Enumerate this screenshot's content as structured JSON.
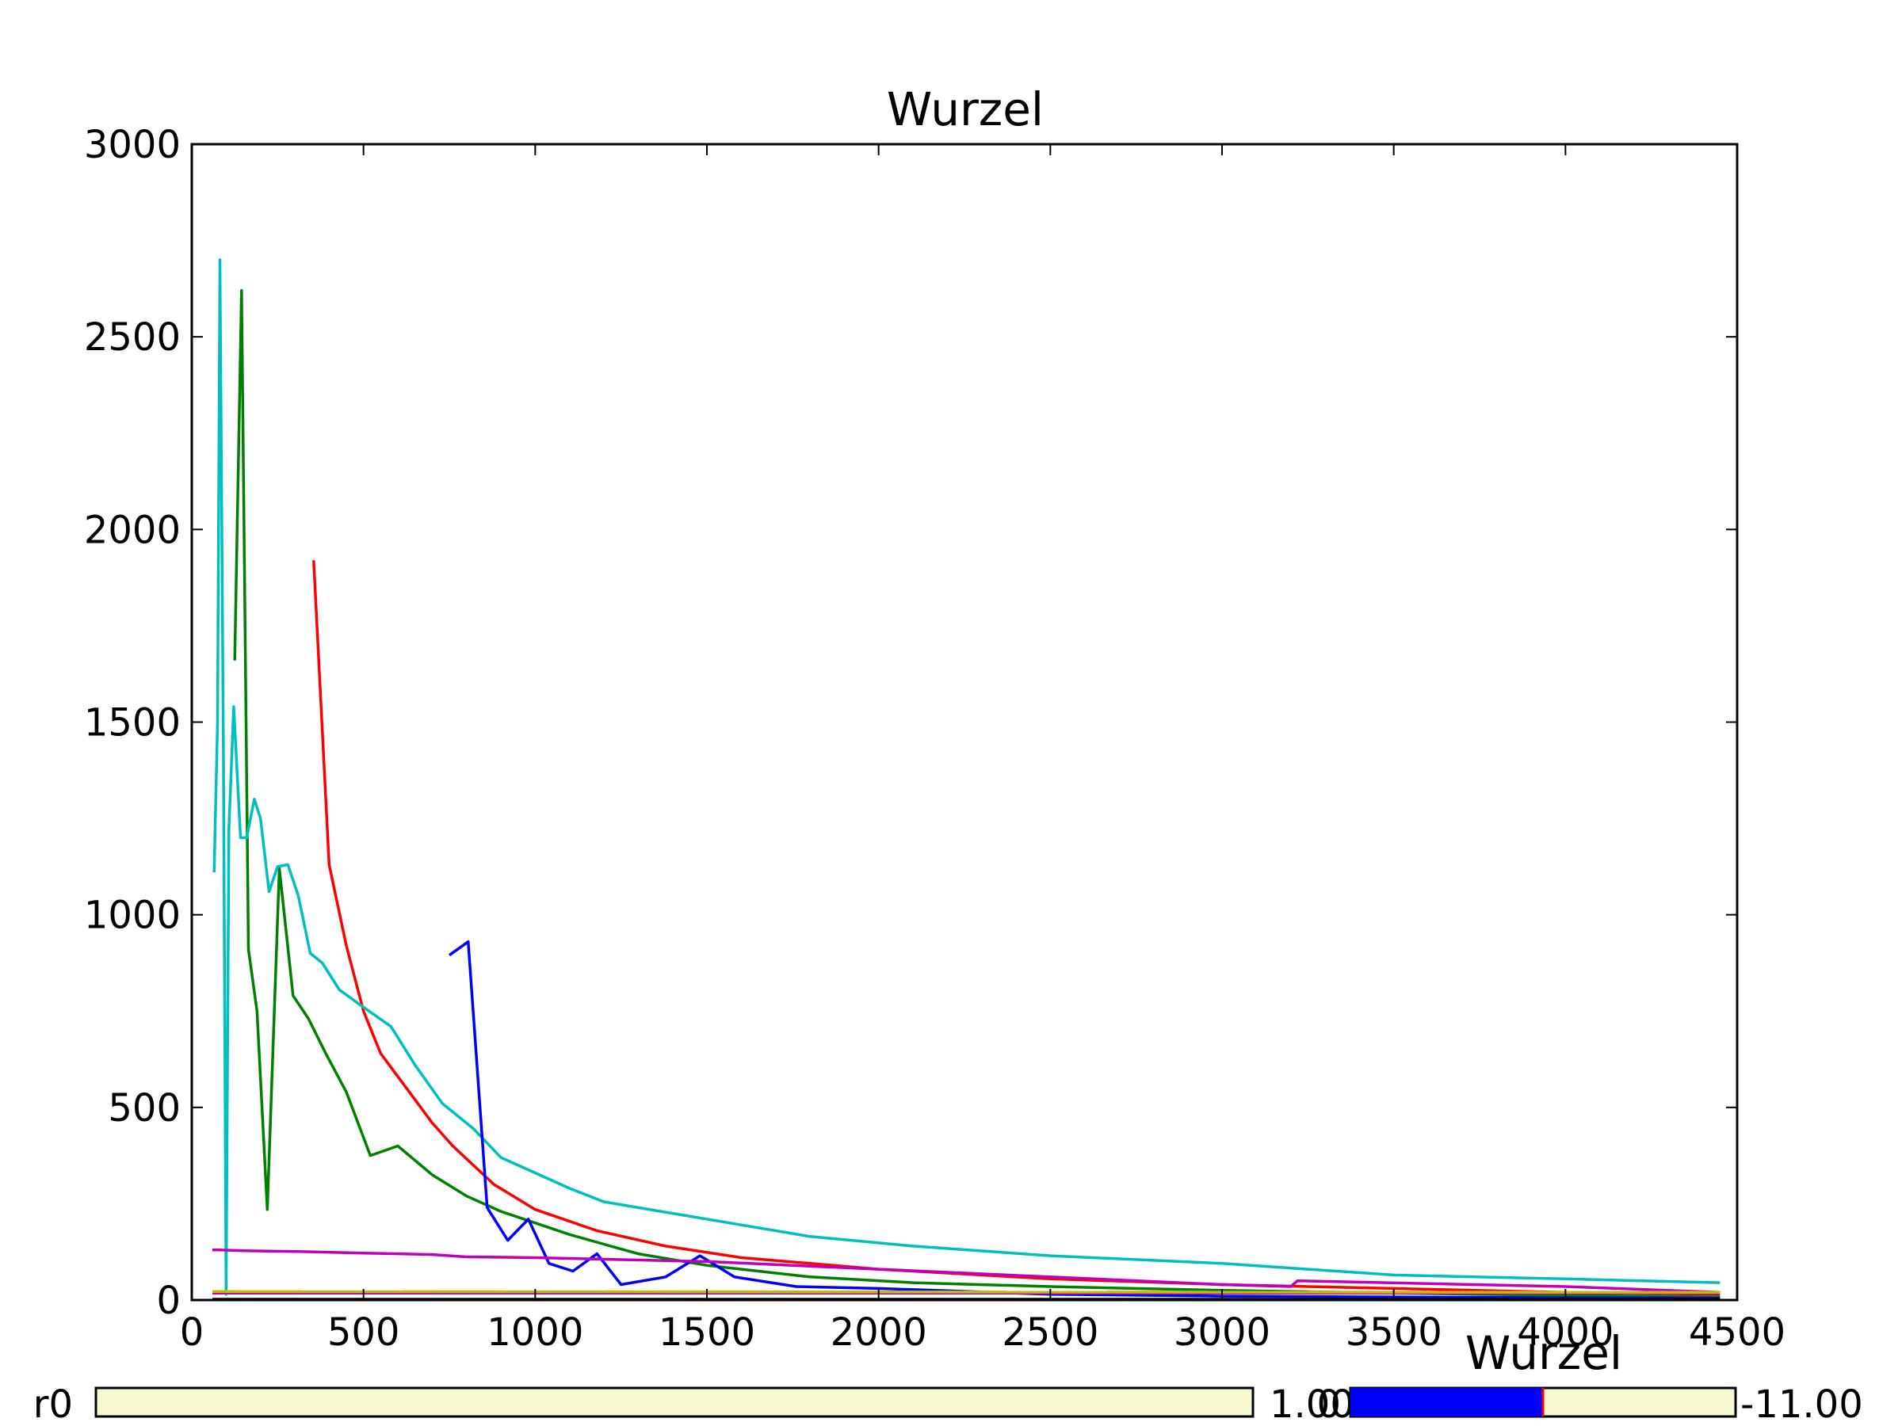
{
  "chart_data": {
    "type": "line",
    "title": "Wurzel",
    "xlabel": "",
    "ylabel": "",
    "xlim": [
      0,
      4500
    ],
    "ylim": [
      0,
      3000
    ],
    "xticks": [
      "0",
      "500",
      "1000",
      "1500",
      "2000",
      "2500",
      "3000",
      "3500",
      "4000",
      "4500"
    ],
    "yticks": [
      "0",
      "500",
      "1000",
      "1500",
      "2000",
      "2500",
      "3000"
    ],
    "grid": false,
    "colors": {
      "red": "#ff0000",
      "green": "#008000",
      "cyan": "#00bfbf",
      "blue": "#0000ff",
      "magenta": "#bf00bf",
      "yellow": "#bfbf00",
      "black": "#000000"
    },
    "series": [
      {
        "color": "#ff0000",
        "x": [
          355,
          400,
          450,
          500,
          550,
          600,
          650,
          700,
          760,
          880,
          1000,
          1180,
          1380,
          1600,
          1800,
          2000,
          2500,
          3000,
          3500,
          4000,
          4450
        ],
        "y": [
          1920,
          1130,
          920,
          750,
          640,
          580,
          520,
          460,
          400,
          300,
          235,
          180,
          140,
          110,
          95,
          80,
          55,
          40,
          30,
          20,
          15
        ]
      },
      {
        "color": "#008000",
        "x": [
          125,
          145,
          165,
          190,
          220,
          255,
          295,
          340,
          390,
          450,
          520,
          600,
          700,
          800,
          900,
          1000,
          1100,
          1200,
          1300,
          1500,
          1800,
          2100,
          2500,
          3000,
          3500,
          4000,
          4450
        ],
        "y": [
          1660,
          2620,
          910,
          750,
          235,
          1120,
          790,
          730,
          640,
          540,
          375,
          400,
          325,
          270,
          230,
          200,
          170,
          145,
          120,
          90,
          60,
          45,
          35,
          25,
          18,
          12,
          8
        ]
      },
      {
        "color": "#00bfbf",
        "x": [
          65,
          75,
          82,
          92,
          100,
          108,
          122,
          142,
          160,
          182,
          200,
          225,
          250,
          280,
          310,
          345,
          380,
          430,
          500,
          580,
          650,
          730,
          820,
          900,
          1000,
          1100,
          1200,
          1400,
          1600,
          1800,
          2100,
          2500,
          3000,
          3250,
          3500,
          4000,
          4450
        ],
        "y": [
          1110,
          1500,
          2700,
          1430,
          15,
          1220,
          1540,
          1200,
          1200,
          1300,
          1250,
          1060,
          1125,
          1130,
          1050,
          900,
          875,
          805,
          760,
          710,
          610,
          510,
          445,
          370,
          330,
          290,
          255,
          225,
          195,
          165,
          140,
          115,
          95,
          80,
          65,
          55,
          45
        ]
      },
      {
        "color": "#0000ff",
        "x": [
          750,
          805,
          860,
          920,
          980,
          1040,
          1110,
          1180,
          1250,
          1380,
          1480,
          1580,
          1760,
          2000,
          2500,
          3000,
          3500,
          4000,
          4450
        ],
        "y": [
          895,
          930,
          240,
          155,
          210,
          95,
          75,
          120,
          40,
          60,
          115,
          60,
          35,
          30,
          15,
          10,
          8,
          6,
          5
        ]
      },
      {
        "color": "#bf00bf",
        "x": [
          60,
          80,
          150,
          300,
          500,
          700,
          800,
          1000,
          1500,
          2000,
          3000,
          3200,
          3220,
          4000,
          4450
        ],
        "y": [
          130,
          130,
          128,
          126,
          122,
          118,
          112,
          110,
          100,
          80,
          40,
          35,
          50,
          35,
          20
        ]
      },
      {
        "color": "#bf00bf",
        "x": [
          60,
          4450
        ],
        "y": [
          18,
          18
        ]
      },
      {
        "color": "#bfbf00",
        "x": [
          60,
          4450
        ],
        "y": [
          22,
          20
        ]
      },
      {
        "color": "#000000",
        "x": [
          60,
          4450
        ],
        "y": [
          2,
          2
        ]
      }
    ]
  },
  "sliders": {
    "left": {
      "label": "r0",
      "value_text": "1.00",
      "fraction": 0
    },
    "right": {
      "title": "Wurzel",
      "prefix_text": "0",
      "value_text": "-11.00",
      "fraction": 0.5
    }
  }
}
